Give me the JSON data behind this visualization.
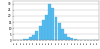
{
  "categories": [
    "57",
    "58",
    "59",
    "60",
    "61",
    "62",
    "63",
    "64",
    "65",
    "66",
    "67",
    "68",
    "69",
    "70",
    "71",
    "72",
    "73",
    "74",
    "75",
    "76",
    "77",
    "78",
    "79",
    "80",
    "81",
    "82",
    "83"
  ],
  "values": [
    0.1,
    0.2,
    0.3,
    0.8,
    1.2,
    2.5,
    4.5,
    8.0,
    12.0,
    17.0,
    21.0,
    30.0,
    27.0,
    19.5,
    14.5,
    9.5,
    5.5,
    3.0,
    1.8,
    1.0,
    0.5,
    0.3,
    0.2,
    0.1,
    0.1,
    0.05,
    0.05
  ],
  "bar_color": "#55bbee",
  "bar_edge_color": "#44aadd",
  "background_color": "#ffffff",
  "grid_color": "#bbbbbb",
  "ylim": [
    0,
    32
  ],
  "yticks": [
    0,
    5,
    10,
    15,
    20,
    25,
    30
  ],
  "title": "",
  "xlabel": "",
  "ylabel": ""
}
